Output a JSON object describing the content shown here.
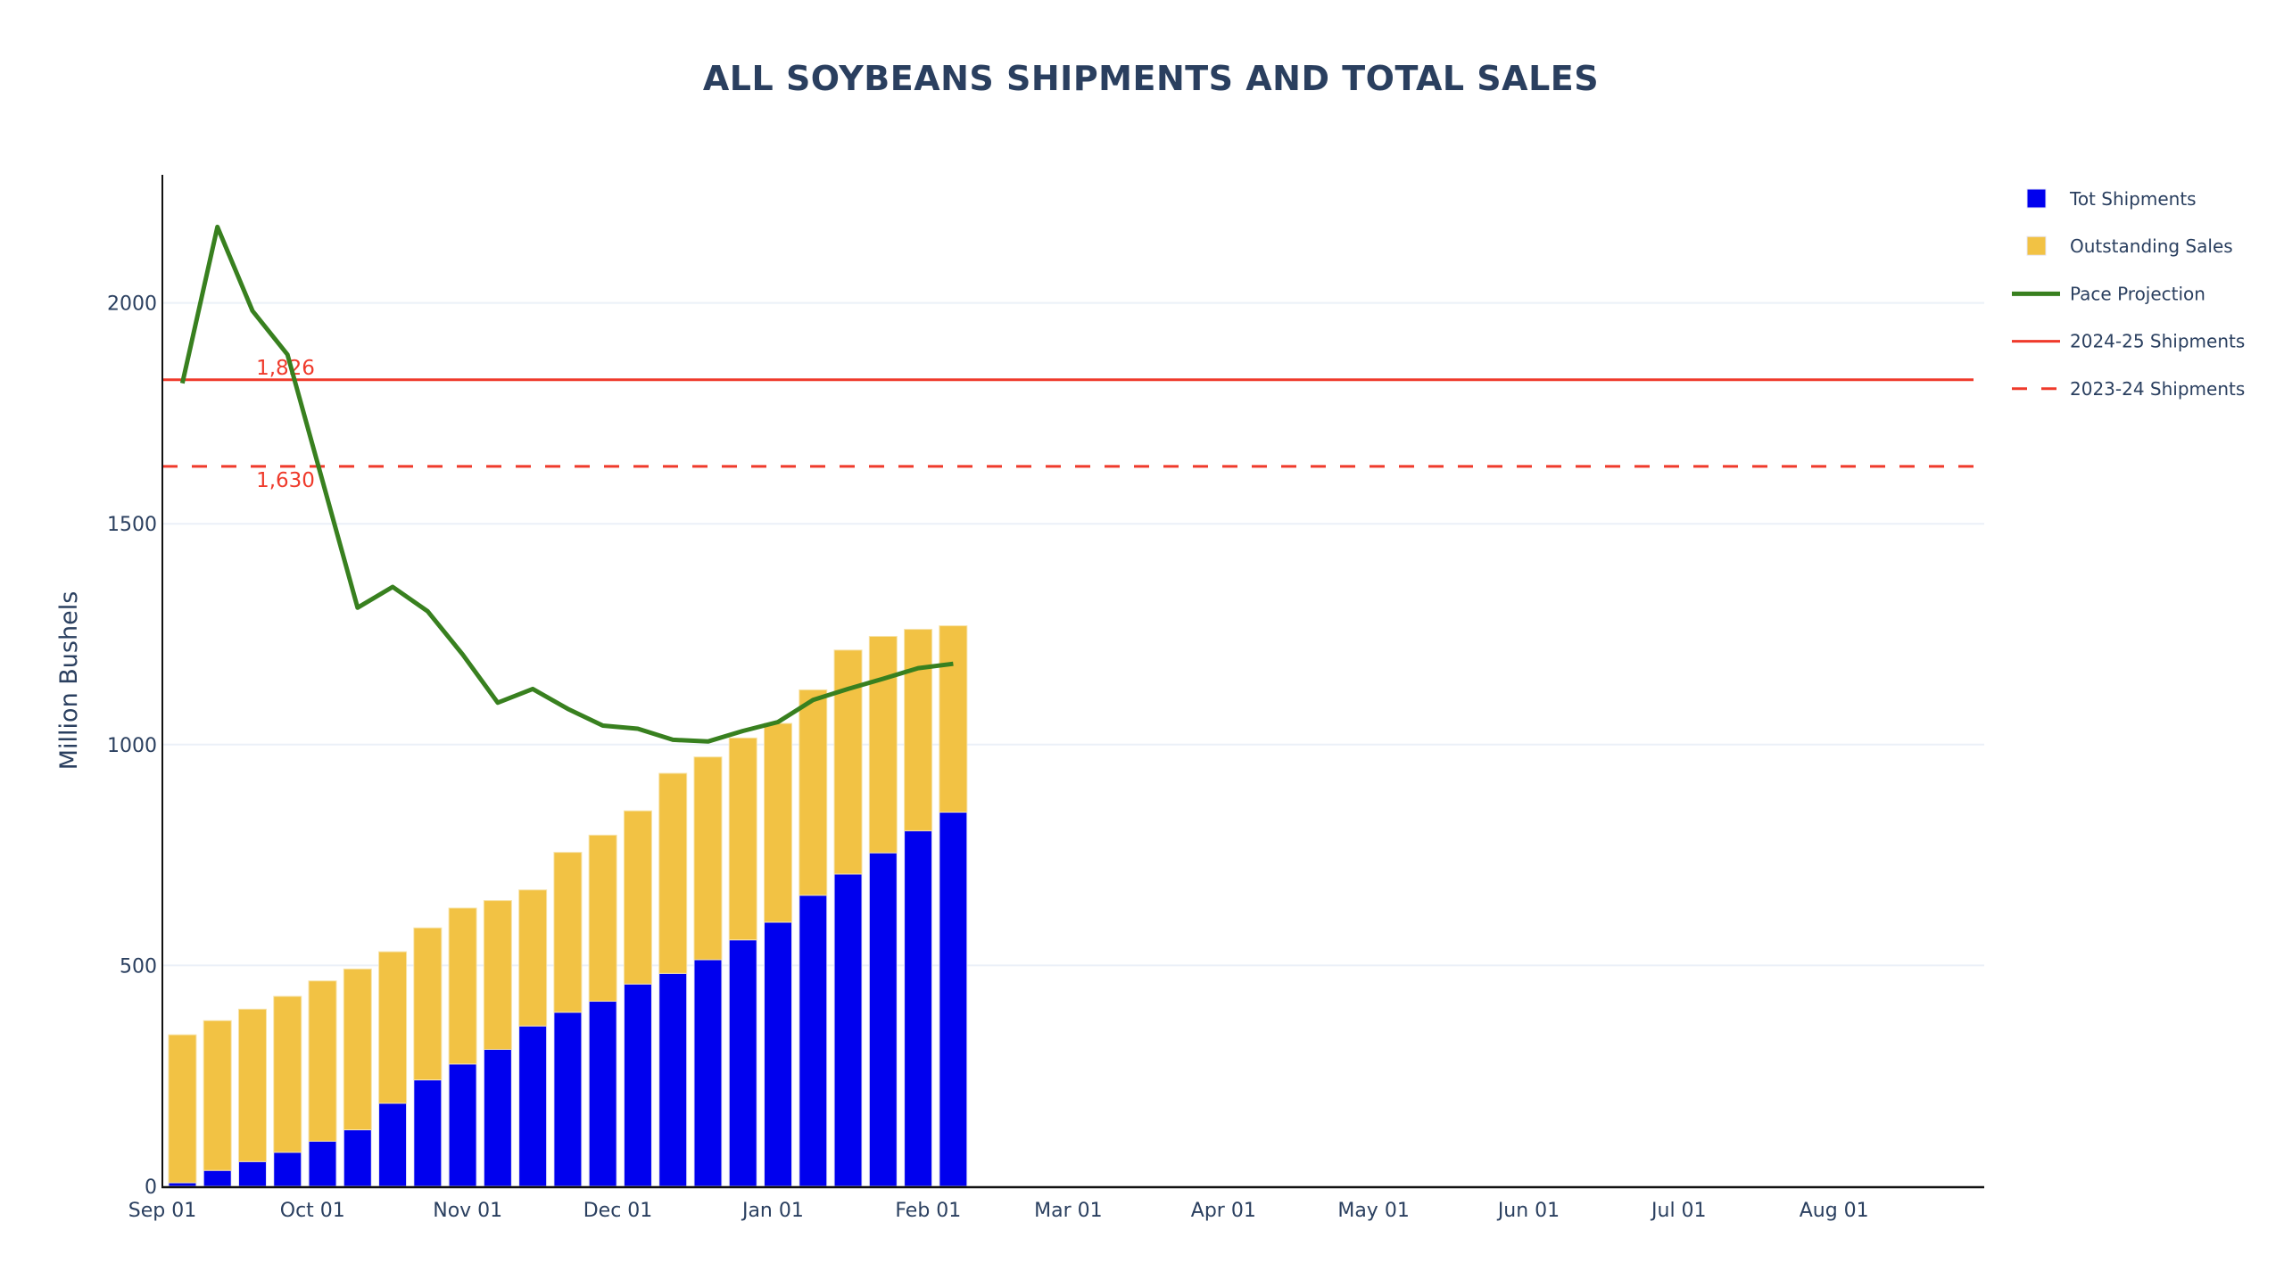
{
  "chart_data": {
    "type": "bar",
    "title": "ALL SOYBEANS SHIPMENTS AND TOTAL SALES",
    "xlabel": "",
    "ylabel": "Million Bushels",
    "barmode": "stack",
    "x_range": [
      "2024-09-01",
      "2025-08-31"
    ],
    "ylim": [
      0,
      2290
    ],
    "y_ticks": [
      0,
      500,
      1000,
      1500,
      2000
    ],
    "x_ticks": [
      {
        "date": "2024-09-01",
        "label": "Sep 01"
      },
      {
        "date": "2024-10-01",
        "label": "Oct 01"
      },
      {
        "date": "2024-11-01",
        "label": "Nov 01"
      },
      {
        "date": "2024-12-01",
        "label": "Dec 01"
      },
      {
        "date": "2025-01-01",
        "label": "Jan 01"
      },
      {
        "date": "2025-02-01",
        "label": "Feb 01"
      },
      {
        "date": "2025-03-01",
        "label": "Mar 01"
      },
      {
        "date": "2025-04-01",
        "label": "Apr 01"
      },
      {
        "date": "2025-05-01",
        "label": "May 01"
      },
      {
        "date": "2025-06-01",
        "label": "Jun 01"
      },
      {
        "date": "2025-07-01",
        "label": "Jul 01"
      },
      {
        "date": "2025-08-01",
        "label": "Aug 01"
      }
    ],
    "grid": true,
    "legend_position": "right",
    "x": [
      "2024-09-05",
      "2024-09-12",
      "2024-09-19",
      "2024-09-26",
      "2024-10-03",
      "2024-10-10",
      "2024-10-17",
      "2024-10-24",
      "2024-10-31",
      "2024-11-07",
      "2024-11-14",
      "2024-11-21",
      "2024-11-28",
      "2024-12-05",
      "2024-12-12",
      "2024-12-19",
      "2024-12-26",
      "2025-01-02",
      "2025-01-09",
      "2025-01-16",
      "2025-01-23",
      "2025-01-30",
      "2025-02-06"
    ],
    "series": [
      {
        "name": "Tot Shipments",
        "type": "bar",
        "color": "#0000ee",
        "values": [
          8,
          36,
          56,
          77,
          102,
          128,
          188,
          241,
          277,
          310,
          363,
          394,
          419,
          458,
          482,
          513,
          558,
          598,
          659,
          707,
          755,
          805,
          847
        ]
      },
      {
        "name": "Outstanding Sales",
        "type": "bar",
        "color": "#f2c244",
        "values": [
          335,
          339,
          345,
          353,
          363,
          364,
          343,
          344,
          353,
          337,
          308,
          362,
          376,
          392,
          453,
          459,
          457,
          450,
          465,
          507,
          490,
          456,
          422
        ]
      },
      {
        "name": "Pace Projection",
        "type": "line",
        "color": "#38801f",
        "values": [
          1818,
          2172,
          1982,
          1883,
          1597,
          1310,
          1357,
          1302,
          1204,
          1095,
          1126,
          1081,
          1043,
          1036,
          1011,
          1007,
          1031,
          1051,
          1101,
          1126,
          1149,
          1173,
          1183
        ]
      },
      {
        "name": "2024-25 Shipments",
        "type": "hline",
        "color": "#ef3a2b",
        "dash": "solid",
        "value": 1826,
        "label": "1,826"
      },
      {
        "name": "2023-24 Shipments",
        "type": "hline",
        "color": "#ef3a2b",
        "dash": "dash",
        "value": 1630,
        "label": "1,630"
      }
    ]
  },
  "legend": [
    {
      "name": "Tot Shipments",
      "symbol": "square",
      "color": "#0000ee"
    },
    {
      "name": "Outstanding Sales",
      "symbol": "square",
      "color": "#f2c244"
    },
    {
      "name": "Pace Projection",
      "symbol": "line-thick",
      "color": "#38801f"
    },
    {
      "name": "2024-25 Shipments",
      "symbol": "line",
      "color": "#ef3a2b"
    },
    {
      "name": "2023-24 Shipments",
      "symbol": "line-dash",
      "color": "#ef3a2b"
    }
  ]
}
